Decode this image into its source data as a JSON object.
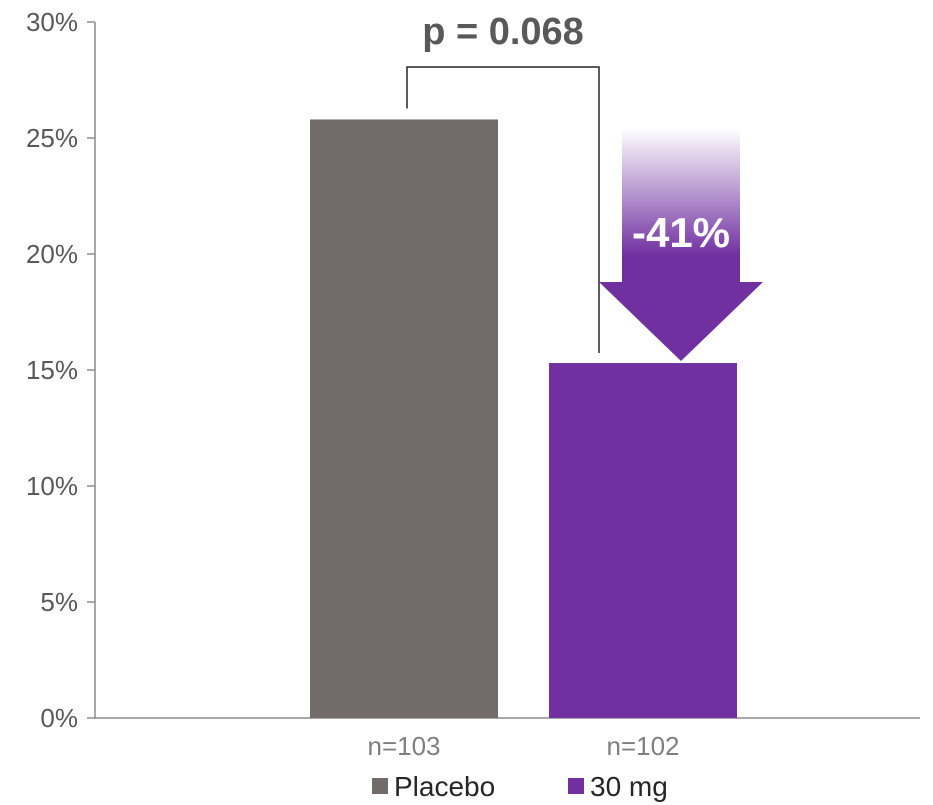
{
  "chart_data": {
    "type": "bar",
    "categories": [
      "n=103",
      "n=102"
    ],
    "series": [
      {
        "name": "Placebo",
        "values": [
          25.8,
          null
        ],
        "color": "#716c69"
      },
      {
        "name": "30 mg",
        "values": [
          null,
          15.3
        ],
        "color": "#7030a0"
      }
    ],
    "ylim": [
      0,
      30
    ],
    "yticks": [
      0,
      5,
      10,
      15,
      20,
      25,
      30
    ],
    "ytick_labels": [
      "0%",
      "5%",
      "10%",
      "15%",
      "20%",
      "25%",
      "30%"
    ],
    "grid": false,
    "legend": {
      "position": "bottom",
      "entries": [
        "Placebo",
        "30 mg"
      ]
    },
    "annotations": {
      "p_value": "p = 0.068",
      "reduction": "-41%"
    },
    "colors": {
      "axis": "#8c8c8c",
      "bracket": "#262626",
      "arrow": "#7030a0"
    }
  }
}
